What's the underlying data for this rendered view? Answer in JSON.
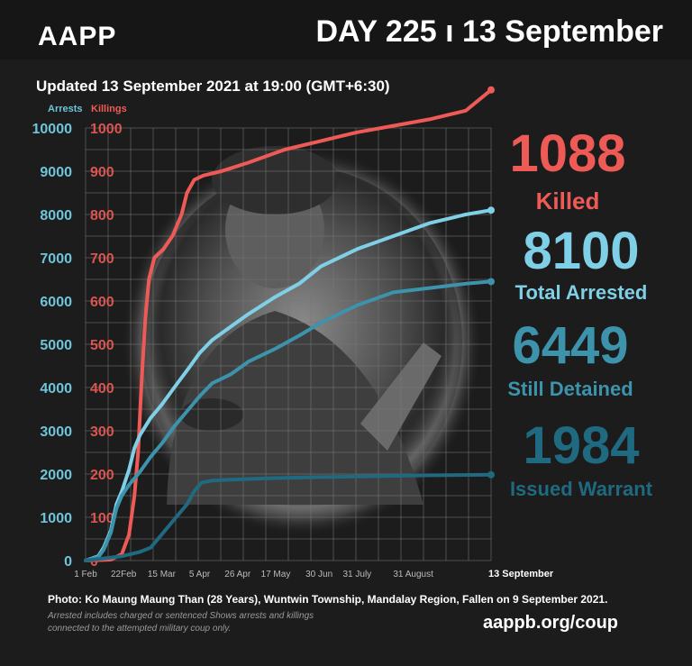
{
  "brand": "AAPP",
  "day_label": "DAY 225 ı 13 September",
  "updated": "Updated 13 September 2021 at 19:00 (GMT+6:30)",
  "stats": [
    {
      "value": "1088",
      "label": "Killed",
      "color": "#ee5b57"
    },
    {
      "value": "8100",
      "label": "Total Arrested",
      "color": "#7fd0e6"
    },
    {
      "value": "6449",
      "label": "Still Detained",
      "color": "#3c93ab"
    },
    {
      "value": "1984",
      "label": "Issued Warrant",
      "color": "#1f6a80"
    }
  ],
  "photo_caption": "Photo:  Ko Maung Maung Than (28 Years), Wuntwin Township, Mandalay Region, Fallen on 9 September 2021.",
  "footnote": "Arrested includes charged or sentenced Shows arrests and killings connected to the attempted military coup only.",
  "url": "aappb.org/coup",
  "chart_data": {
    "type": "line",
    "legend": [
      "Arrests",
      "Killings"
    ],
    "x_ticks": [
      "1 Feb",
      "22Feb",
      "15 Mar",
      "5 Apr",
      "26 Apr",
      "17 May",
      "30 Jun",
      "31 July",
      "31 August",
      "13 September"
    ],
    "x_tick_days": [
      0,
      21,
      42,
      63,
      84,
      105,
      129,
      150,
      181,
      224
    ],
    "arrests_axis": {
      "ticks": [
        0,
        1000,
        2000,
        3000,
        4000,
        5000,
        6000,
        7000,
        8000,
        9000,
        10000
      ],
      "ylim": [
        0,
        10000
      ]
    },
    "killings_axis": {
      "ticks": [
        0,
        100,
        200,
        300,
        400,
        500,
        600,
        700,
        800,
        900,
        1000
      ],
      "ylim": [
        0,
        1000
      ]
    },
    "series": [
      {
        "name": "Killings",
        "axis": "killings",
        "color": "#ee5b57",
        "points": [
          [
            0,
            0
          ],
          [
            14,
            2
          ],
          [
            20,
            15
          ],
          [
            24,
            60
          ],
          [
            27,
            150
          ],
          [
            29,
            250
          ],
          [
            31,
            420
          ],
          [
            33,
            560
          ],
          [
            35,
            650
          ],
          [
            38,
            700
          ],
          [
            43,
            720
          ],
          [
            48,
            750
          ],
          [
            53,
            800
          ],
          [
            56,
            850
          ],
          [
            60,
            880
          ],
          [
            65,
            890
          ],
          [
            75,
            900
          ],
          [
            90,
            920
          ],
          [
            110,
            950
          ],
          [
            130,
            970
          ],
          [
            150,
            990
          ],
          [
            170,
            1005
          ],
          [
            190,
            1020
          ],
          [
            210,
            1040
          ],
          [
            224,
            1088
          ]
        ]
      },
      {
        "name": "Total Arrested",
        "axis": "arrests",
        "color": "#7fd0e6",
        "points": [
          [
            0,
            0
          ],
          [
            7,
            100
          ],
          [
            10,
            300
          ],
          [
            14,
            700
          ],
          [
            17,
            1300
          ],
          [
            20,
            1600
          ],
          [
            24,
            2100
          ],
          [
            27,
            2600
          ],
          [
            30,
            2900
          ],
          [
            36,
            3300
          ],
          [
            42,
            3600
          ],
          [
            49,
            4000
          ],
          [
            57,
            4450
          ],
          [
            63,
            4800
          ],
          [
            70,
            5100
          ],
          [
            80,
            5400
          ],
          [
            90,
            5700
          ],
          [
            105,
            6100
          ],
          [
            118,
            6400
          ],
          [
            130,
            6800
          ],
          [
            150,
            7200
          ],
          [
            170,
            7500
          ],
          [
            190,
            7800
          ],
          [
            210,
            8000
          ],
          [
            224,
            8100
          ]
        ]
      },
      {
        "name": "Still Detained",
        "axis": "arrests",
        "color": "#3c93ab",
        "points": [
          [
            0,
            0
          ],
          [
            7,
            80
          ],
          [
            10,
            250
          ],
          [
            14,
            650
          ],
          [
            17,
            1200
          ],
          [
            20,
            1500
          ],
          [
            24,
            1750
          ],
          [
            27,
            1900
          ],
          [
            30,
            2050
          ],
          [
            36,
            2400
          ],
          [
            42,
            2700
          ],
          [
            49,
            3100
          ],
          [
            57,
            3500
          ],
          [
            63,
            3800
          ],
          [
            70,
            4100
          ],
          [
            80,
            4300
          ],
          [
            90,
            4600
          ],
          [
            105,
            4900
          ],
          [
            118,
            5200
          ],
          [
            130,
            5500
          ],
          [
            150,
            5900
          ],
          [
            170,
            6200
          ],
          [
            190,
            6300
          ],
          [
            210,
            6400
          ],
          [
            224,
            6449
          ]
        ]
      },
      {
        "name": "Issued Warrant",
        "axis": "arrests",
        "color": "#1f6a80",
        "points": [
          [
            0,
            0
          ],
          [
            10,
            50
          ],
          [
            20,
            100
          ],
          [
            30,
            200
          ],
          [
            36,
            300
          ],
          [
            42,
            600
          ],
          [
            50,
            1000
          ],
          [
            56,
            1300
          ],
          [
            60,
            1600
          ],
          [
            64,
            1800
          ],
          [
            70,
            1850
          ],
          [
            80,
            1870
          ],
          [
            100,
            1900
          ],
          [
            130,
            1930
          ],
          [
            160,
            1950
          ],
          [
            190,
            1970
          ],
          [
            224,
            1984
          ]
        ]
      }
    ]
  }
}
